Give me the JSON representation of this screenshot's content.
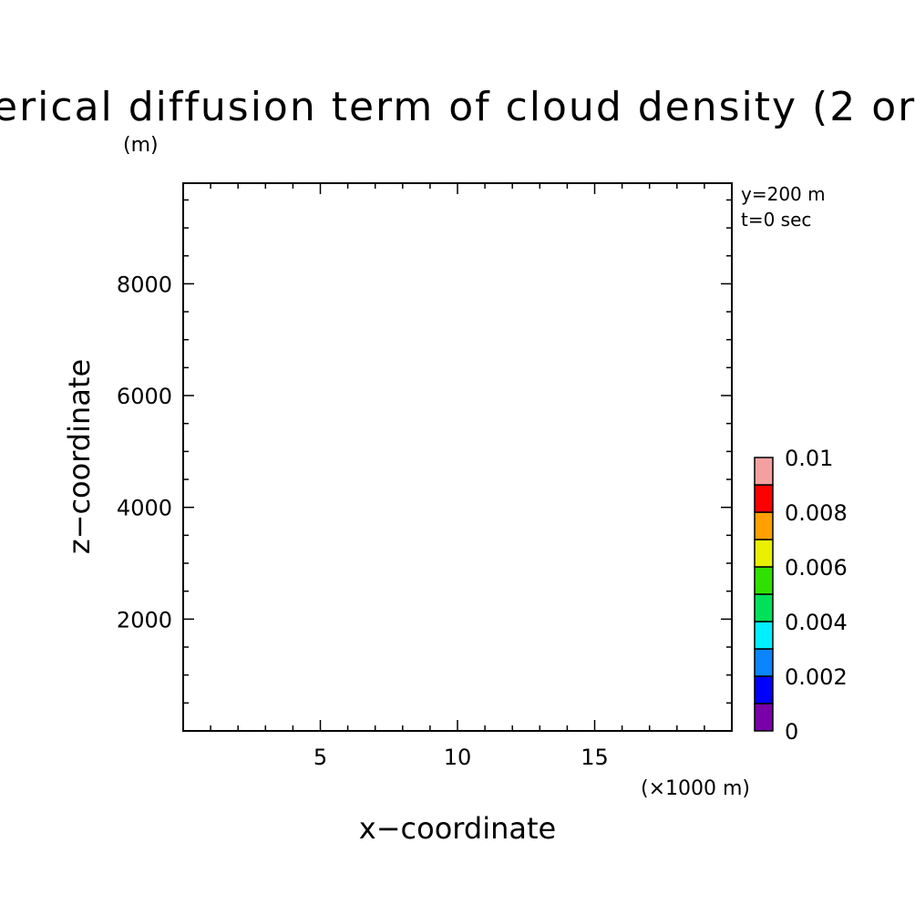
{
  "chart_data": {
    "type": "heatmap",
    "title": "erical diffusion term of cloud density (2 or",
    "title_unit": "(m)",
    "xlabel": "x−coordinate",
    "x_unit": "(×1000 m)",
    "ylabel": "z−coordinate",
    "xlim": [
      0,
      20
    ],
    "ylim": [
      0,
      9800
    ],
    "x_ticks": [
      "5",
      "10",
      "15"
    ],
    "y_ticks": [
      "2000",
      "4000",
      "6000",
      "8000"
    ],
    "annotations": [
      "y=200 m",
      "t=0 sec"
    ],
    "grid": false,
    "field": "empty",
    "colorbar": {
      "levels": [
        0,
        0.001,
        0.002,
        0.003,
        0.004,
        0.005,
        0.006,
        0.007,
        0.008,
        0.009,
        0.01
      ],
      "labels": [
        "0",
        "0.002",
        "0.004",
        "0.006",
        "0.008",
        "0.01"
      ],
      "colors": [
        "#7a00a8",
        "#0000ff",
        "#0a84ff",
        "#00f0ff",
        "#00e05a",
        "#30e000",
        "#e8f000",
        "#ff9f00",
        "#ff0000",
        "#f4a0a0"
      ]
    }
  }
}
